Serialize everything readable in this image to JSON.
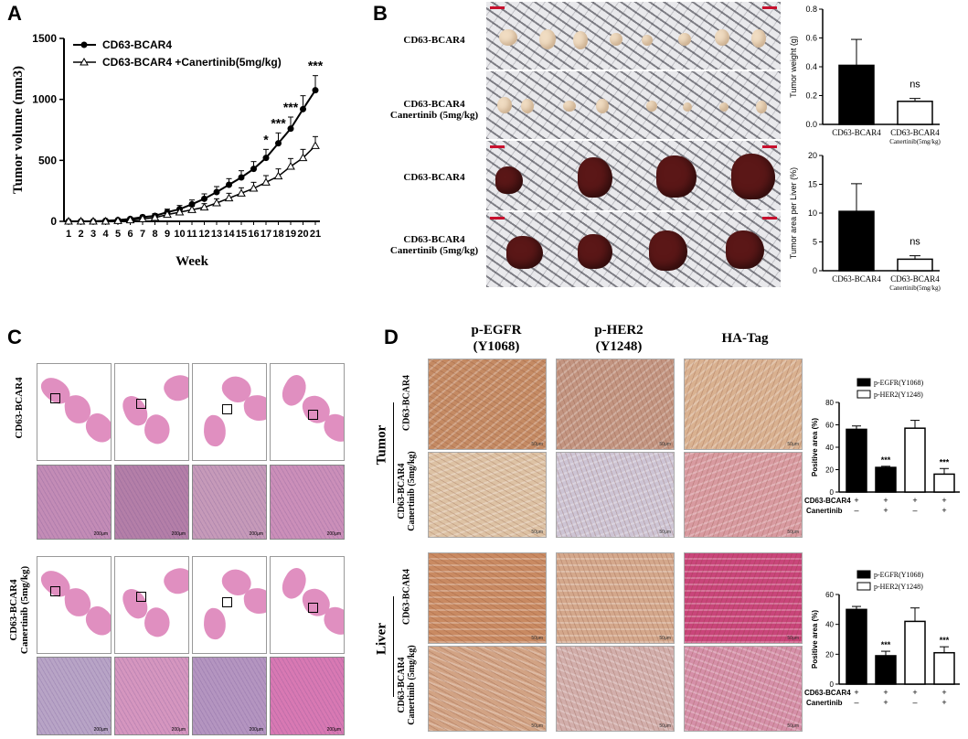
{
  "panels": {
    "a": "A",
    "b": "B",
    "c": "C",
    "d": "D"
  },
  "chart_data": [
    {
      "type": "line",
      "ylabel": "Tumor volume (mm3)",
      "xlabel": "Week",
      "x": [
        1,
        2,
        3,
        4,
        5,
        6,
        7,
        8,
        9,
        10,
        11,
        12,
        13,
        14,
        15,
        16,
        17,
        18,
        19,
        20,
        21
      ],
      "ylim": [
        0,
        1500
      ],
      "yticks": [
        0,
        500,
        1000,
        1500
      ],
      "series": [
        {
          "name": "CD63-BCAR4",
          "marker": "filled-circle",
          "values": [
            0,
            0,
            0,
            5,
            10,
            20,
            35,
            45,
            75,
            100,
            140,
            185,
            240,
            300,
            360,
            430,
            520,
            640,
            760,
            920,
            1075
          ],
          "errors": [
            5,
            5,
            5,
            8,
            10,
            12,
            15,
            18,
            25,
            30,
            35,
            40,
            45,
            50,
            55,
            60,
            70,
            85,
            95,
            110,
            120
          ]
        },
        {
          "name": "CD63-BCAR4 +Canertinib(5mg/kg)",
          "marker": "open-triangle",
          "values": [
            0,
            0,
            0,
            0,
            5,
            10,
            20,
            30,
            55,
            75,
            95,
            115,
            150,
            190,
            230,
            270,
            320,
            370,
            450,
            520,
            620
          ],
          "errors": [
            5,
            5,
            5,
            5,
            8,
            10,
            12,
            15,
            20,
            25,
            28,
            30,
            35,
            40,
            45,
            50,
            55,
            60,
            65,
            70,
            75
          ]
        }
      ],
      "significance": [
        {
          "x": 17,
          "label": "*"
        },
        {
          "x": 18,
          "label": "***"
        },
        {
          "x": 19,
          "label": "***"
        },
        {
          "x": 21,
          "label": "***"
        }
      ]
    },
    {
      "type": "bar",
      "ylabel": "Tumor  weight (g)",
      "categories": [
        "CD63-BCAR4",
        "CD63-BCAR4"
      ],
      "category_sub": [
        "",
        "Canertinib(5mg/kg)"
      ],
      "values": [
        0.41,
        0.16
      ],
      "errors": [
        0.18,
        0.02
      ],
      "fills": [
        "#000000",
        "#ffffff"
      ],
      "ylim": [
        0,
        0.8
      ],
      "yticks": [
        "0.0",
        "0.2",
        "0.4",
        "0.6",
        "0.8"
      ],
      "annotation": "ns"
    },
    {
      "type": "bar",
      "ylabel": "Tumor area per Liver (%)",
      "categories": [
        "CD63-BCAR4",
        "CD63-BCAR4"
      ],
      "category_sub": [
        "",
        "Canertinib(5mg/kg)"
      ],
      "values": [
        10.3,
        2.0
      ],
      "errors": [
        4.8,
        0.6
      ],
      "fills": [
        "#000000",
        "#ffffff"
      ],
      "ylim": [
        0,
        20
      ],
      "yticks": [
        "0",
        "5",
        "10",
        "15",
        "20"
      ],
      "annotation": "ns"
    },
    {
      "type": "bar",
      "ylabel": "Positive area (%)",
      "legend": [
        "p-EGFR(Y1068)",
        "p-HER2(Y1248)"
      ],
      "values": [
        56,
        22,
        57,
        16
      ],
      "errors": [
        3,
        1,
        7,
        5
      ],
      "fills": [
        "#000000",
        "#000000",
        "#ffffff",
        "#ffffff"
      ],
      "ylim": [
        0,
        80
      ],
      "yticks": [
        "0",
        "20",
        "40",
        "60",
        "80"
      ],
      "stars": [
        "",
        "***",
        "",
        "***"
      ],
      "cond_labels": [
        "CD63-BCAR4",
        "Canertinib"
      ],
      "cond_row1": [
        "+",
        "+",
        "+",
        "+"
      ],
      "cond_row2": [
        "–",
        "+",
        "–",
        "+"
      ]
    },
    {
      "type": "bar",
      "ylabel": "Positive area (%)",
      "legend": [
        "p-EGFR(Y1068)",
        "p-HER2(Y1248)"
      ],
      "values": [
        50,
        19,
        42,
        21
      ],
      "errors": [
        2,
        3,
        9,
        4
      ],
      "fills": [
        "#000000",
        "#000000",
        "#ffffff",
        "#ffffff"
      ],
      "ylim": [
        0,
        60
      ],
      "yticks": [
        "0",
        "20",
        "40",
        "60"
      ],
      "stars": [
        "",
        "***",
        "",
        "***"
      ],
      "cond_labels": [
        "CD63-BCAR4",
        "Canertinib"
      ],
      "cond_row1": [
        "+",
        "+",
        "+",
        "+"
      ],
      "cond_row2": [
        "–",
        "+",
        "–",
        "+"
      ]
    }
  ],
  "panel_b": {
    "row_labels": [
      "CD63-BCAR4",
      "CD63-BCAR4",
      "CD63-BCAR4",
      "CD63-BCAR4"
    ],
    "row_sub": [
      "",
      "Canertinib (5mg/kg)",
      "",
      "Canertinib (5mg/kg)"
    ]
  },
  "panel_c": {
    "group1": "CD63-BCAR4",
    "group2_line1": "CD63-BCAR4",
    "group2_line2": "Canertinib (5mg/kg)",
    "scale": "200μm"
  },
  "panel_d": {
    "columns": [
      "p-EGFR",
      "(Y1068)",
      "p-HER2",
      "(Y1248)",
      "HA-Tag"
    ],
    "tumor": "Tumor",
    "liver": "Liver",
    "row_a": "CD63-BCAR4",
    "row_b1": "CD63-BCAR4",
    "row_b2": "Canertinib (5mg/kg)",
    "scale": "50μm"
  }
}
